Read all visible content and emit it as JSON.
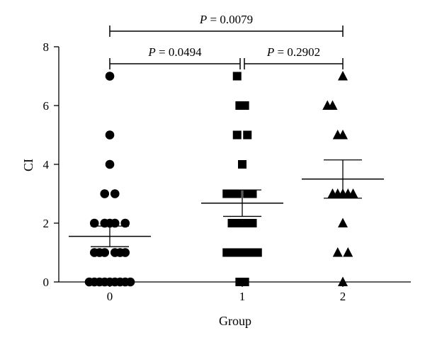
{
  "chart_data": {
    "type": "scatter",
    "title": "",
    "xlabel": "Group",
    "ylabel": "CI",
    "ylim": [
      0,
      8
    ],
    "yticks": [
      0,
      2,
      4,
      6,
      8
    ],
    "grid": false,
    "legend": "none",
    "categories": [
      "0",
      "1",
      "2"
    ],
    "series": [
      {
        "group": "0",
        "marker": "circle",
        "points": [
          [
            -0.5,
            0
          ],
          [
            -0.375,
            0
          ],
          [
            -0.25,
            0
          ],
          [
            -0.125,
            0
          ],
          [
            0,
            0
          ],
          [
            0.125,
            0
          ],
          [
            0.25,
            0
          ],
          [
            0.375,
            0
          ],
          [
            0.5,
            0
          ],
          [
            -0.375,
            1
          ],
          [
            -0.25,
            1
          ],
          [
            -0.125,
            1
          ],
          [
            0.125,
            1
          ],
          [
            0.25,
            1
          ],
          [
            0.375,
            1
          ],
          [
            -0.375,
            2
          ],
          [
            -0.125,
            2
          ],
          [
            0,
            2
          ],
          [
            0.125,
            2
          ],
          [
            0.375,
            2
          ],
          [
            -0.125,
            3
          ],
          [
            0.125,
            3
          ],
          [
            0,
            4
          ],
          [
            0,
            5
          ],
          [
            0,
            7
          ]
        ],
        "mean": 1.55,
        "sem": 0.35
      },
      {
        "group": "1",
        "marker": "square",
        "points": [
          [
            -0.0625,
            0
          ],
          [
            0.0625,
            0
          ],
          [
            -0.375,
            1
          ],
          [
            -0.25,
            1
          ],
          [
            -0.125,
            1
          ],
          [
            0,
            1
          ],
          [
            0.125,
            1
          ],
          [
            0.25,
            1
          ],
          [
            0.375,
            1
          ],
          [
            -0.25,
            2
          ],
          [
            -0.125,
            2
          ],
          [
            0,
            2
          ],
          [
            0.125,
            2
          ],
          [
            0.25,
            2
          ],
          [
            -0.375,
            3
          ],
          [
            -0.25,
            3
          ],
          [
            -0.125,
            3
          ],
          [
            0.125,
            3
          ],
          [
            0.25,
            3
          ],
          [
            0,
            4
          ],
          [
            -0.125,
            5
          ],
          [
            0.125,
            5
          ],
          [
            -0.0625,
            6
          ],
          [
            0.0625,
            6
          ],
          [
            -0.125,
            7
          ]
        ],
        "mean": 2.68,
        "sem": 0.45
      },
      {
        "group": "2",
        "marker": "triangle",
        "points": [
          [
            0,
            0
          ],
          [
            -0.125,
            1
          ],
          [
            0.125,
            1
          ],
          [
            0,
            2
          ],
          [
            -0.25,
            3
          ],
          [
            -0.125,
            3
          ],
          [
            0,
            3
          ],
          [
            0.125,
            3
          ],
          [
            0.25,
            3
          ],
          [
            -0.125,
            5
          ],
          [
            0,
            5
          ],
          [
            -0.375,
            6
          ],
          [
            -0.25,
            6
          ],
          [
            0,
            7
          ]
        ],
        "mean": 3.5,
        "sem": 0.65
      }
    ],
    "comparisons": [
      {
        "from": "0",
        "to": "1",
        "label": "P = 0.0494",
        "p": "P",
        "value": " = 0.0494"
      },
      {
        "from": "1",
        "to": "2",
        "label": "P = 0.2902",
        "p": "P",
        "value": " = 0.2902"
      },
      {
        "from": "0",
        "to": "2",
        "label": "P = 0.0079",
        "p": "P",
        "value": " = 0.0079"
      }
    ]
  }
}
